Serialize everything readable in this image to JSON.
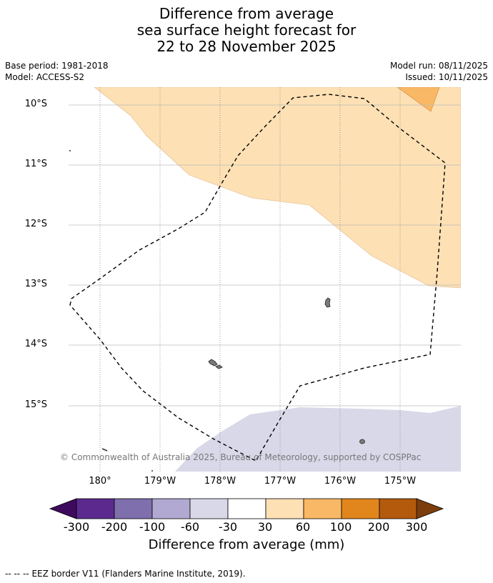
{
  "title": {
    "line1": "Difference from average",
    "line2": "sea surface height forecast for",
    "line3": "22 to 28 November 2025"
  },
  "meta": {
    "base_period": "Base period: 1981-2018",
    "model": "Model: ACCESS-S2",
    "model_run": "Model run: 08/11/2025",
    "issued": "Issued: 10/11/2025"
  },
  "map": {
    "lat_labels": [
      "10°S",
      "11°S",
      "12°S",
      "13°S",
      "14°S",
      "15°S"
    ],
    "lon_labels": [
      "180°",
      "179°W",
      "178°W",
      "177°W",
      "176°W",
      "175°W"
    ],
    "copyright": "© Commonwealth of Australia 2025, Bureau of Meteorology, supported by COSPPac",
    "colors": {
      "light_orange": "#fde0b4",
      "orange": "#f9b865",
      "light_purple": "#d8d8e9",
      "grid": "#bbbbbb",
      "land": "#7a7a7a"
    }
  },
  "colorbar": {
    "ticks": [
      "-300",
      "-200",
      "-100",
      "-60",
      "-30",
      "30",
      "60",
      "100",
      "200",
      "300"
    ],
    "colors": [
      "#5c2a8f",
      "#7f6fad",
      "#b1a9d1",
      "#d8d8e9",
      "#ffffff",
      "#fde0b4",
      "#f9b865",
      "#e1861c",
      "#b35a0c"
    ],
    "low_color": "#3e0a5e",
    "high_color": "#7c3d0c",
    "label": "Difference from average (mm)"
  },
  "footer": {
    "legend_symbol": "--  --  --",
    "legend_text": "EEZ border V11 (Flanders Marine Institute, 2019)."
  }
}
